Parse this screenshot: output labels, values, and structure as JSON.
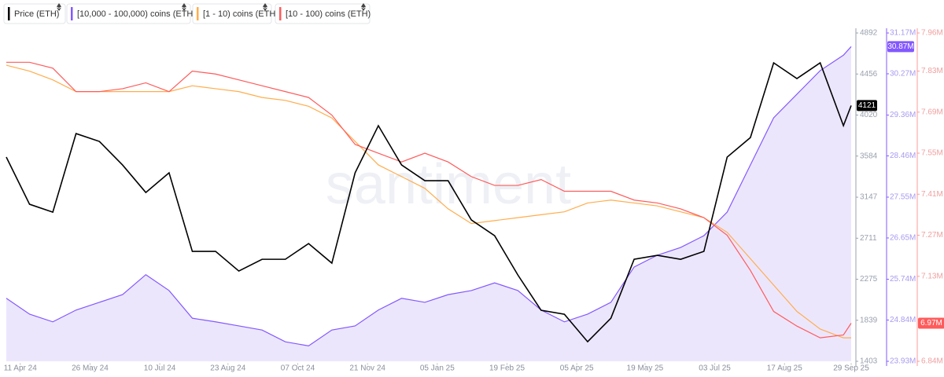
{
  "chart_data": {
    "type": "line",
    "watermark": "santiment",
    "x": [
      "2024-04-02",
      "2024-04-17",
      "2024-05-02",
      "2024-05-17",
      "2024-06-01",
      "2024-06-16",
      "2024-07-01",
      "2024-07-16",
      "2024-07-31",
      "2024-08-15",
      "2024-08-30",
      "2024-09-14",
      "2024-09-29",
      "2024-10-14",
      "2024-10-29",
      "2024-11-13",
      "2024-11-28",
      "2024-12-13",
      "2024-12-28",
      "2025-01-12",
      "2025-01-27",
      "2025-02-11",
      "2025-02-26",
      "2025-03-13",
      "2025-03-28",
      "2025-04-12",
      "2025-04-27",
      "2025-05-12",
      "2025-05-27",
      "2025-06-11",
      "2025-06-26",
      "2025-07-11",
      "2025-07-26",
      "2025-08-10",
      "2025-08-25",
      "2025-09-09",
      "2025-09-24",
      "2025-09-29"
    ],
    "xlim": [
      "2024-04-02",
      "2025-09-29"
    ],
    "xticks": [
      {
        "value": "2024-04-11",
        "label": "11 Apr 24"
      },
      {
        "value": "2024-05-26",
        "label": "26 May 24"
      },
      {
        "value": "2024-07-10",
        "label": "10 Jul 24"
      },
      {
        "value": "2024-08-23",
        "label": "23 Aug 24"
      },
      {
        "value": "2024-10-07",
        "label": "07 Oct 24"
      },
      {
        "value": "2024-11-21",
        "label": "21 Nov 24"
      },
      {
        "value": "2025-01-05",
        "label": "05 Jan 25"
      },
      {
        "value": "2025-02-19",
        "label": "19 Feb 25"
      },
      {
        "value": "2025-04-05",
        "label": "05 Apr 25"
      },
      {
        "value": "2025-05-19",
        "label": "19 May 25"
      },
      {
        "value": "2025-07-03",
        "label": "03 Jul 25"
      },
      {
        "value": "2025-08-17",
        "label": "17 Aug 25"
      },
      {
        "value": "2025-09-29",
        "label": "29 Sep 25"
      }
    ],
    "ylim": [
      1403,
      4892
    ],
    "yticks": [
      1403,
      1839,
      2275,
      2711,
      3147,
      3584,
      4020,
      4456,
      4892
    ],
    "y2lim": [
      23930000,
      31170000
    ],
    "y2ticks": [
      {
        "value": 23930000,
        "label": "23.93M"
      },
      {
        "value": 24840000,
        "label": "24.84M"
      },
      {
        "value": 25740000,
        "label": "25.74M"
      },
      {
        "value": 26650000,
        "label": "26.65M"
      },
      {
        "value": 27550000,
        "label": "27.55M"
      },
      {
        "value": 28460000,
        "label": "28.46M"
      },
      {
        "value": 29360000,
        "label": "29.36M"
      },
      {
        "value": 30270000,
        "label": "30.27M"
      },
      {
        "value": 31170000,
        "label": "31.17M"
      }
    ],
    "y3lim": [
      6840000,
      7960000
    ],
    "y3ticks": [
      {
        "value": 6840000,
        "label": "6.84M"
      },
      {
        "value": 7130000,
        "label": "7.13M"
      },
      {
        "value": 7270000,
        "label": "7.27M"
      },
      {
        "value": 7410000,
        "label": "7.41M"
      },
      {
        "value": 7550000,
        "label": "7.55M"
      },
      {
        "value": 7690000,
        "label": "7.69M"
      },
      {
        "value": 7830000,
        "label": "7.83M"
      },
      {
        "value": 7960000,
        "label": "7.96M"
      }
    ],
    "series": [
      {
        "name": "Price (ETH)",
        "color": "#000000",
        "axis": "y",
        "values": [
          3573,
          3072,
          2988,
          3823,
          3740,
          3489,
          3197,
          3406,
          2571,
          2571,
          2362,
          2487,
          2487,
          2654,
          2446,
          3406,
          3907,
          3489,
          3322,
          3322,
          2905,
          2738,
          2320,
          1945,
          1903,
          1611,
          1861,
          2487,
          2529,
          2487,
          2571,
          3573,
          3781,
          4575,
          4408,
          4575,
          3907,
          4121
        ]
      },
      {
        "name": "[10,000 - 100,000) coins (ETH)",
        "color": "#8358ff",
        "axis": "y2",
        "area": true,
        "last_value_label": "30.87M",
        "values": [
          25320000,
          24970000,
          24800000,
          25060000,
          25230000,
          25400000,
          25840000,
          25490000,
          24880000,
          24800000,
          24710000,
          24620000,
          24360000,
          24270000,
          24620000,
          24710000,
          25060000,
          25320000,
          25230000,
          25400000,
          25490000,
          25660000,
          25490000,
          25060000,
          24800000,
          24970000,
          25230000,
          26010000,
          26270000,
          26440000,
          26700000,
          27220000,
          28260000,
          29300000,
          29820000,
          30340000,
          30680000,
          30870000
        ]
      },
      {
        "name": "[1 - 10) coins (ETH)",
        "color": "#ffad4d",
        "axis": "y3",
        "values": [
          7850000,
          7830000,
          7800000,
          7760000,
          7760000,
          7760000,
          7760000,
          7760000,
          7780000,
          7770000,
          7760000,
          7740000,
          7730000,
          7710000,
          7670000,
          7590000,
          7510000,
          7470000,
          7430000,
          7360000,
          7310000,
          7320000,
          7330000,
          7340000,
          7350000,
          7380000,
          7390000,
          7380000,
          7370000,
          7350000,
          7330000,
          7280000,
          7190000,
          7100000,
          7010000,
          6950000,
          6920000,
          6920000
        ]
      },
      {
        "name": "[10 - 100) coins (ETH)",
        "color": "#ff5b5b",
        "axis": "y3",
        "last_value_label": "6.97M",
        "values": [
          7860000,
          7860000,
          7840000,
          7760000,
          7760000,
          7770000,
          7790000,
          7760000,
          7830000,
          7820000,
          7800000,
          7780000,
          7760000,
          7740000,
          7680000,
          7580000,
          7550000,
          7520000,
          7550000,
          7520000,
          7470000,
          7440000,
          7440000,
          7460000,
          7420000,
          7420000,
          7420000,
          7390000,
          7380000,
          7360000,
          7330000,
          7270000,
          7150000,
          7010000,
          6960000,
          6920000,
          6930000,
          6970000
        ]
      }
    ]
  }
}
